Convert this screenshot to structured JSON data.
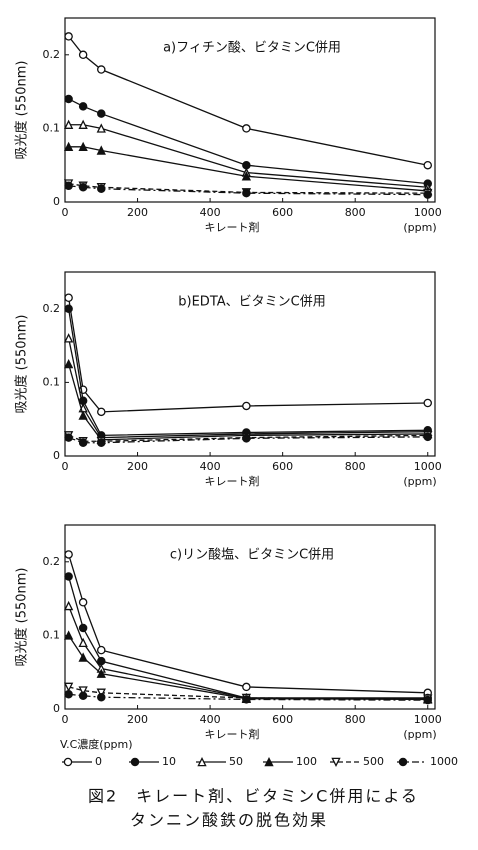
{
  "chart_data": [
    {
      "type": "line",
      "title": "a)フィチン酸、ビタミンC併用",
      "ylabel": "吸光度 (550nm)",
      "xlabel": "キレート剤",
      "xunit": "(ppm)",
      "x": [
        10,
        50,
        100,
        500,
        1000
      ],
      "xlim": [
        0,
        1020
      ],
      "xticks": [
        0,
        200,
        400,
        600,
        800,
        1000
      ],
      "ylim": [
        0,
        0.25
      ],
      "yticks": [
        0,
        0.1,
        0.2
      ],
      "series": [
        {
          "name": "0",
          "color": "#111",
          "marker": "circle-open",
          "dash": "solid",
          "values": [
            0.225,
            0.2,
            0.18,
            0.1,
            0.05
          ]
        },
        {
          "name": "10",
          "color": "#111",
          "marker": "circle-filled",
          "dash": "solid",
          "values": [
            0.14,
            0.13,
            0.12,
            0.05,
            0.025
          ]
        },
        {
          "name": "50",
          "color": "#111",
          "marker": "triangle-open",
          "dash": "solid",
          "values": [
            0.105,
            0.105,
            0.1,
            0.04,
            0.02
          ]
        },
        {
          "name": "100",
          "color": "#111",
          "marker": "triangle-filled",
          "dash": "solid",
          "values": [
            0.075,
            0.075,
            0.07,
            0.035,
            0.015
          ]
        },
        {
          "name": "500",
          "color": "#111",
          "marker": "triangle-down-open",
          "dash": "dashed",
          "values": [
            0.025,
            0.022,
            0.02,
            0.013,
            0.012
          ]
        },
        {
          "name": "1000",
          "color": "#111",
          "marker": "circle-filled",
          "dash": "dashdot",
          "values": [
            0.022,
            0.02,
            0.018,
            0.012,
            0.01
          ]
        }
      ]
    },
    {
      "type": "line",
      "title": "b)EDTA、ビタミンC併用",
      "ylabel": "吸光度 (550nm)",
      "xlabel": "キレート剤",
      "xunit": "(ppm)",
      "x": [
        10,
        50,
        100,
        500,
        1000
      ],
      "xlim": [
        0,
        1020
      ],
      "xticks": [
        0,
        200,
        400,
        600,
        800,
        1000
      ],
      "ylim": [
        0,
        0.25
      ],
      "yticks": [
        0,
        0.1,
        0.2
      ],
      "series": [
        {
          "name": "0",
          "color": "#111",
          "marker": "circle-open",
          "dash": "solid",
          "values": [
            0.215,
            0.09,
            0.06,
            0.068,
            0.072
          ]
        },
        {
          "name": "10",
          "color": "#111",
          "marker": "circle-filled",
          "dash": "solid",
          "values": [
            0.2,
            0.075,
            0.028,
            0.032,
            0.035
          ]
        },
        {
          "name": "50",
          "color": "#111",
          "marker": "triangle-open",
          "dash": "solid",
          "values": [
            0.16,
            0.065,
            0.025,
            0.03,
            0.033
          ]
        },
        {
          "name": "100",
          "color": "#111",
          "marker": "triangle-filled",
          "dash": "solid",
          "values": [
            0.125,
            0.055,
            0.022,
            0.028,
            0.03
          ]
        },
        {
          "name": "500",
          "color": "#111",
          "marker": "triangle-down-open",
          "dash": "dashed",
          "values": [
            0.028,
            0.02,
            0.02,
            0.025,
            0.028
          ]
        },
        {
          "name": "1000",
          "color": "#111",
          "marker": "circle-filled",
          "dash": "dashdot",
          "values": [
            0.025,
            0.018,
            0.018,
            0.024,
            0.026
          ]
        }
      ]
    },
    {
      "type": "line",
      "title": "c)リン酸塩、ビタミンC併用",
      "ylabel": "吸光度 (550nm)",
      "xlabel": "キレート剤",
      "xunit": "(ppm)",
      "x": [
        10,
        50,
        100,
        500,
        1000
      ],
      "xlim": [
        0,
        1020
      ],
      "xticks": [
        0,
        200,
        400,
        600,
        800,
        1000
      ],
      "ylim": [
        0,
        0.25
      ],
      "yticks": [
        0,
        0.1,
        0.2
      ],
      "series": [
        {
          "name": "0",
          "color": "#111",
          "marker": "circle-open",
          "dash": "solid",
          "values": [
            0.21,
            0.145,
            0.08,
            0.03,
            0.022
          ]
        },
        {
          "name": "10",
          "color": "#111",
          "marker": "circle-filled",
          "dash": "solid",
          "values": [
            0.18,
            0.11,
            0.065,
            0.015,
            0.015
          ]
        },
        {
          "name": "50",
          "color": "#111",
          "marker": "triangle-open",
          "dash": "solid",
          "values": [
            0.14,
            0.09,
            0.055,
            0.015,
            0.014
          ]
        },
        {
          "name": "100",
          "color": "#111",
          "marker": "triangle-filled",
          "dash": "solid",
          "values": [
            0.1,
            0.07,
            0.048,
            0.014,
            0.013
          ]
        },
        {
          "name": "500",
          "color": "#111",
          "marker": "triangle-down-open",
          "dash": "dashed",
          "values": [
            0.03,
            0.025,
            0.022,
            0.015,
            0.014
          ]
        },
        {
          "name": "1000",
          "color": "#111",
          "marker": "circle-filled",
          "dash": "dashdot",
          "values": [
            0.02,
            0.018,
            0.016,
            0.013,
            0.012
          ]
        }
      ]
    }
  ],
  "legend_title": "V.C濃度(ppm)",
  "caption": [
    "図2　キレート剤、ビタミンC併用による",
    "タンニン酸鉄の脱色効果"
  ]
}
